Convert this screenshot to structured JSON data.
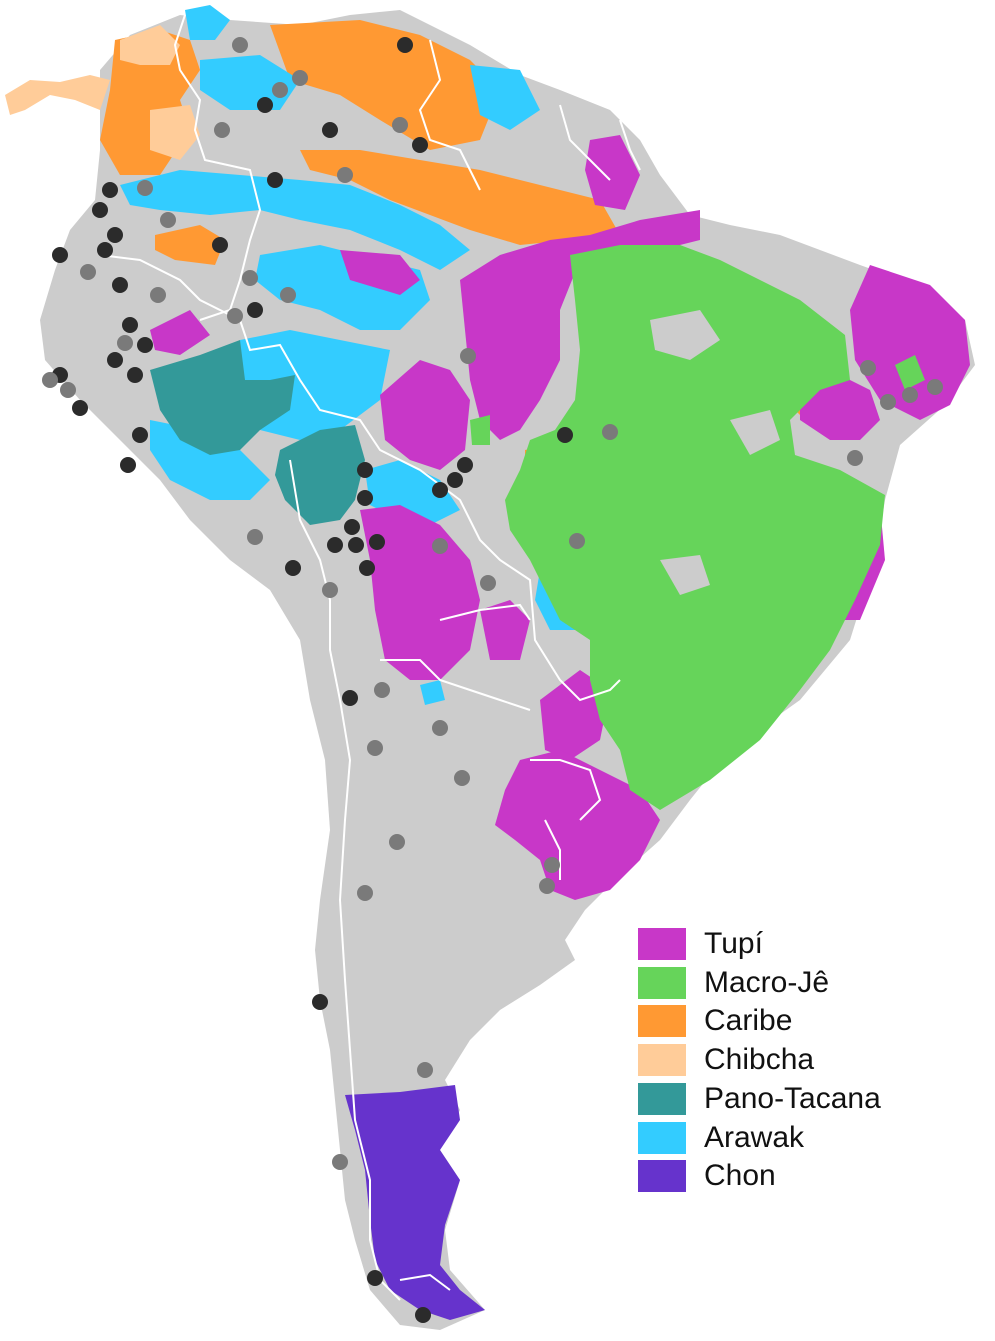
{
  "map": {
    "colors": {
      "land": "#cccccc",
      "border": "#ffffff",
      "dot_dark": "#2b2b2b",
      "dot_light": "#7a7a7a"
    }
  },
  "legend": {
    "items": [
      {
        "label": "Tupí",
        "color": "#c837c8"
      },
      {
        "label": "Macro-Jê",
        "color": "#66d45a"
      },
      {
        "label": "Caribe",
        "color": "#ff9933"
      },
      {
        "label": "Chibcha",
        "color": "#ffcc99"
      },
      {
        "label": "Pano-Tacana",
        "color": "#339999"
      },
      {
        "label": "Arawak",
        "color": "#33ccff"
      },
      {
        "label": "Chon",
        "color": "#6633cc"
      }
    ]
  }
}
